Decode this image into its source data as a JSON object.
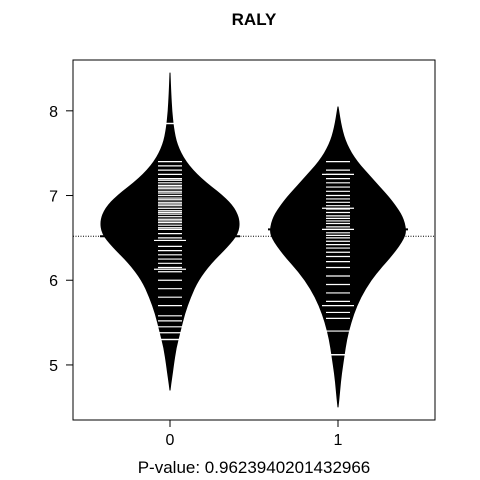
{
  "chart_data": {
    "type": "beanplot",
    "title": "RALY",
    "xlabel": "P-value: 0.9623940201432966",
    "ylabel": "",
    "categories": [
      "0",
      "1"
    ],
    "y_ticks": [
      5,
      6,
      7,
      8
    ],
    "ylim": [
      4.35,
      8.6
    ],
    "overall_mean": 6.52,
    "groups": [
      {
        "name": "0",
        "mean": 6.52,
        "median": 6.47,
        "min": 4.7,
        "max": 8.45,
        "density": [
          [
            4.7,
            0.0
          ],
          [
            4.85,
            0.02
          ],
          [
            5.0,
            0.04
          ],
          [
            5.2,
            0.07
          ],
          [
            5.4,
            0.12
          ],
          [
            5.6,
            0.17
          ],
          [
            5.8,
            0.24
          ],
          [
            6.0,
            0.33
          ],
          [
            6.2,
            0.48
          ],
          [
            6.4,
            0.68
          ],
          [
            6.55,
            0.8
          ],
          [
            6.7,
            0.82
          ],
          [
            6.85,
            0.76
          ],
          [
            7.0,
            0.62
          ],
          [
            7.2,
            0.36
          ],
          [
            7.4,
            0.18
          ],
          [
            7.6,
            0.08
          ],
          [
            7.8,
            0.04
          ],
          [
            8.0,
            0.02
          ],
          [
            8.2,
            0.01
          ],
          [
            8.45,
            0.0
          ]
        ],
        "points": [
          5.3,
          5.38,
          5.45,
          5.52,
          5.58,
          5.7,
          5.8,
          5.9,
          6.0,
          6.1,
          6.15,
          6.2,
          6.25,
          6.3,
          6.35,
          6.4,
          6.47,
          6.5,
          6.55,
          6.6,
          6.62,
          6.65,
          6.68,
          6.7,
          6.72,
          6.75,
          6.78,
          6.8,
          6.82,
          6.85,
          6.88,
          6.9,
          6.92,
          6.95,
          6.97,
          7.0,
          7.03,
          7.05,
          7.08,
          7.1,
          7.12,
          7.15,
          7.18,
          7.2,
          7.25,
          7.3,
          7.35,
          7.4,
          7.85
        ],
        "wide_points": [
          7.85,
          6.47,
          6.13,
          5.3
        ]
      },
      {
        "name": "1",
        "mean": 6.6,
        "median": 6.6,
        "min": 4.5,
        "max": 8.05,
        "density": [
          [
            4.5,
            0.0
          ],
          [
            4.7,
            0.02
          ],
          [
            4.9,
            0.04
          ],
          [
            5.1,
            0.07
          ],
          [
            5.3,
            0.1
          ],
          [
            5.5,
            0.15
          ],
          [
            5.7,
            0.22
          ],
          [
            5.9,
            0.32
          ],
          [
            6.1,
            0.46
          ],
          [
            6.3,
            0.64
          ],
          [
            6.5,
            0.78
          ],
          [
            6.6,
            0.8
          ],
          [
            6.75,
            0.76
          ],
          [
            6.9,
            0.66
          ],
          [
            7.0,
            0.58
          ],
          [
            7.2,
            0.4
          ],
          [
            7.4,
            0.22
          ],
          [
            7.6,
            0.1
          ],
          [
            7.8,
            0.04
          ],
          [
            8.05,
            0.0
          ]
        ],
        "points": [
          5.12,
          5.4,
          5.55,
          5.62,
          5.75,
          5.85,
          5.95,
          6.05,
          6.15,
          6.22,
          6.28,
          6.33,
          6.38,
          6.42,
          6.46,
          6.5,
          6.53,
          6.56,
          6.6,
          6.63,
          6.67,
          6.7,
          6.73,
          6.76,
          6.8,
          6.84,
          6.88,
          6.92,
          6.96,
          7.0,
          7.05,
          7.1,
          7.15,
          7.2,
          7.25,
          7.3,
          7.4
        ],
        "wide_points": [
          7.25,
          6.85,
          6.6,
          5.7,
          5.12
        ]
      }
    ],
    "colors": {
      "bean": "#000000",
      "line": "#ffffff",
      "axis": "#000000"
    }
  }
}
